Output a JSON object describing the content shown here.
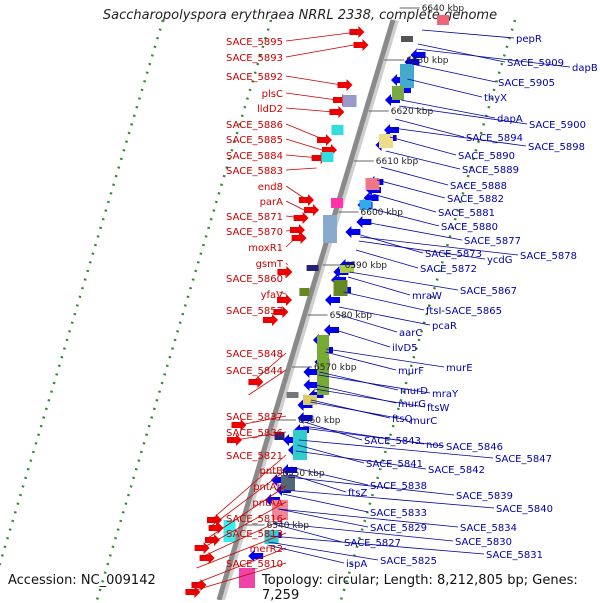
{
  "title": "Saccharopolyspora erythraea NRRL 2338, complete genome",
  "accession": "Accession: NC_009142",
  "topology": "Topology: circular; Length: 8,212,805 bp; Genes: 7,259",
  "colors": {
    "left_label": "#cc0000",
    "right_label": "#0000aa",
    "backbone": "#8a8a8a",
    "dots": "#2e8b2e",
    "forward_arrow": "#ee0000",
    "reverse_arrow": "#0000ee"
  },
  "ticks": [
    "6540 kbp",
    "6550 kbp",
    "6560 kbp",
    "6570 kbp",
    "6580 kbp",
    "6590 kbp",
    "6600 kbp",
    "6610 kbp",
    "6620 kbp",
    "6630 kbp",
    "6640 kbp"
  ],
  "left_labels": [
    "SACE_5895",
    "SACE_5893",
    "SACE_5892",
    "plsC",
    "lldD2",
    "SACE_5886",
    "SACE_5885",
    "SACE_5884",
    "SACE_5883",
    "end8",
    "parA",
    "SACE_5871",
    "SACE_5870",
    "moxR1",
    "gsmT",
    "SACE_5860",
    "yfaV",
    "SACE_5857",
    "SACE_5848",
    "SACE_5844",
    "SACE_5837",
    "SACE_5836",
    "SACE_5821",
    "pntB",
    "pntAb",
    "pntAA",
    "SACE_5816",
    "SACE_5813",
    "merR2",
    "SACE_5810"
  ],
  "right_labels": [
    "pepR",
    "SACE_5909",
    "dapB",
    "SACE_5905",
    "thyX",
    "dapA",
    "SACE_5900",
    "SACE_5894",
    "SACE_5898",
    "SACE_5890",
    "SACE_5889",
    "SACE_5888",
    "SACE_5882",
    "SACE_5881",
    "SACE_5880",
    "SACE_5877",
    "SACE_5878",
    "ycdG",
    "SACE_5873",
    "SACE_5872",
    "SACE_5867",
    "mraW",
    "ftsI-SACE_5865",
    "pcaR",
    "aarC",
    "ilvD5",
    "murE",
    "murF",
    "mraY",
    "murD",
    "ftsW",
    "murG",
    "murC",
    "ftsQ",
    "SACE_5843",
    "nos",
    "SACE_5846",
    "SACE_5847",
    "SACE_5841",
    "SACE_5842",
    "SACE_5838",
    "ftsZ",
    "SACE_5839",
    "SACE_5840",
    "SACE_5833",
    "SACE_5834",
    "SACE_5829",
    "SACE_5830",
    "SACE_5827",
    "SACE_5831",
    "SACE_5825",
    "ispA"
  ]
}
